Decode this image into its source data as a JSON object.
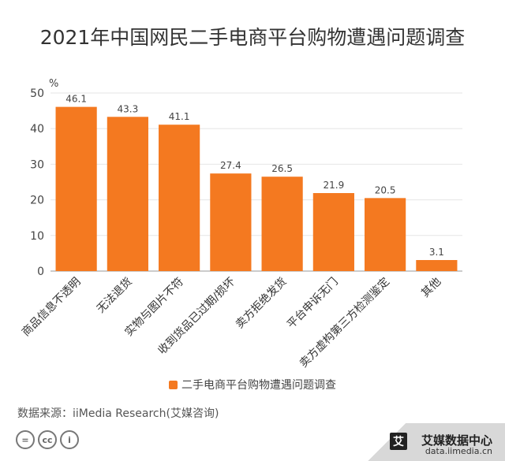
{
  "title": "2021年中国网民二手电商平台购物遭遇问题调查",
  "chart_data": {
    "type": "bar",
    "title": "2021年中国网民二手电商平台购物遭遇问题调查",
    "ylabel": "%",
    "xlabel": "",
    "ylim": [
      0,
      50
    ],
    "yticks": [
      0,
      10,
      20,
      30,
      40,
      50
    ],
    "grid": true,
    "legend_position": "bottom",
    "categories": [
      "商品信息不透明",
      "无法退货",
      "实物与图片不符",
      "收到货品已过期/损坏",
      "卖方拒绝发货",
      "平台申诉无门",
      "卖方虚构第三方检测鉴定",
      "其他"
    ],
    "series": [
      {
        "name": "二手电商平台购物遭遇问题调查",
        "values": [
          46.1,
          43.3,
          41.1,
          27.4,
          26.5,
          21.9,
          20.5,
          3.1
        ],
        "color": "#f47920"
      }
    ]
  },
  "source": "数据来源：iiMedia Research(艾媒咨询)",
  "cc_icons": [
    "=",
    "cc",
    "i"
  ],
  "brand": {
    "logo": "艾",
    "name": "艾媒数据中心",
    "site": "data.iimedia.cn"
  }
}
